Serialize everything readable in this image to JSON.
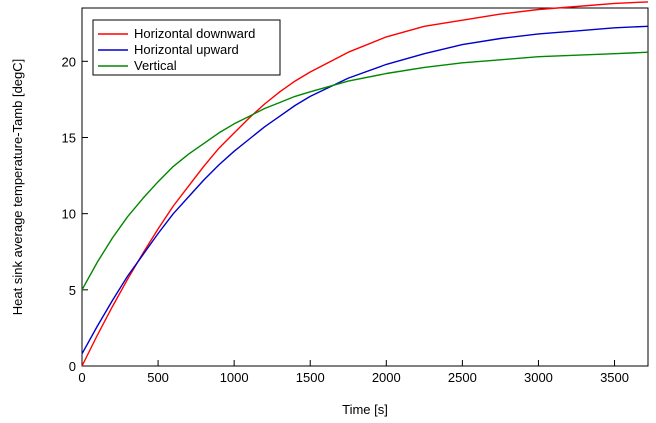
{
  "chart_data": {
    "type": "line",
    "xlabel": "Time [s]",
    "ylabel": "Heat sink average temperature-Tamb [degC]",
    "xlim": [
      0,
      3720
    ],
    "ylim": [
      0,
      23.5
    ],
    "xticks": [
      0,
      500,
      1000,
      1500,
      2000,
      2500,
      3000,
      3500
    ],
    "yticks": [
      0,
      5,
      10,
      15,
      20
    ],
    "xtick_labels": [
      "0",
      "500",
      "1000",
      "1500",
      "2000",
      "2500",
      "3000",
      "3500"
    ],
    "ytick_labels": [
      "0",
      "5",
      "10",
      "15",
      "20"
    ],
    "grid": false,
    "legend_position": "top-left",
    "x": [
      0,
      100,
      200,
      300,
      400,
      500,
      600,
      700,
      800,
      900,
      1000,
      1100,
      1200,
      1300,
      1400,
      1500,
      1750,
      2000,
      2250,
      2500,
      2750,
      3000,
      3250,
      3500,
      3720
    ],
    "series": [
      {
        "name": "Horizontal downward",
        "color": "#ff0000",
        "values": [
          0,
          2.0,
          3.9,
          5.7,
          7.4,
          9.0,
          10.5,
          11.8,
          13.1,
          14.3,
          15.3,
          16.3,
          17.2,
          18.0,
          18.7,
          19.3,
          20.6,
          21.6,
          22.3,
          22.7,
          23.1,
          23.4,
          23.6,
          23.8,
          23.9
        ]
      },
      {
        "name": "Horizontal upward",
        "color": "#0000cc",
        "values": [
          0.8,
          2.6,
          4.3,
          5.9,
          7.3,
          8.7,
          10.0,
          11.1,
          12.2,
          13.2,
          14.1,
          14.9,
          15.7,
          16.4,
          17.1,
          17.7,
          18.9,
          19.8,
          20.5,
          21.1,
          21.5,
          21.8,
          22.0,
          22.2,
          22.3
        ]
      },
      {
        "name": "Vertical",
        "color": "#008800",
        "values": [
          5.0,
          6.8,
          8.4,
          9.8,
          11.0,
          12.1,
          13.1,
          13.9,
          14.6,
          15.3,
          15.9,
          16.4,
          16.9,
          17.3,
          17.7,
          18.0,
          18.7,
          19.2,
          19.6,
          19.9,
          20.1,
          20.3,
          20.4,
          20.5,
          20.6
        ]
      }
    ]
  }
}
